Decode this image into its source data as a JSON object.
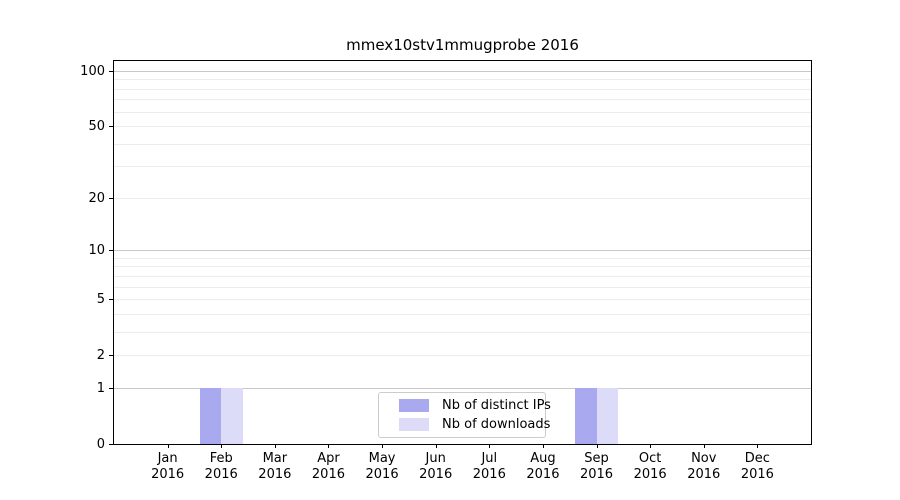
{
  "chart_data": {
    "type": "bar",
    "title": "mmex10stv1mmugprobe 2016",
    "categories": [
      "Jan",
      "Feb",
      "Mar",
      "Apr",
      "May",
      "Jun",
      "Jul",
      "Aug",
      "Sep",
      "Oct",
      "Nov",
      "Dec"
    ],
    "x_year_label": "2016",
    "series": [
      {
        "name": "Nb of distinct IPs",
        "color": "#a9a9f0",
        "values": [
          0,
          1,
          0,
          0,
          0,
          0,
          0,
          0,
          1,
          0,
          0,
          0
        ]
      },
      {
        "name": "Nb of downloads",
        "color": "#dcdcf8",
        "values": [
          0,
          1,
          0,
          0,
          0,
          0,
          0,
          0,
          1,
          0,
          0,
          0
        ]
      }
    ],
    "y_scale": "symlog-like (position proportional to log(1+v))",
    "ylim": [
      0,
      113
    ],
    "y_tick_labels": [
      "100",
      "50",
      "20",
      "10",
      "5",
      "2",
      "1",
      "0"
    ],
    "y_tick_values": [
      100,
      50,
      20,
      10,
      5,
      2,
      1,
      0
    ],
    "y_gridlines_major": [
      1,
      10,
      100
    ],
    "y_gridlines_minor": [
      2,
      3,
      4,
      5,
      6,
      7,
      8,
      9,
      20,
      30,
      40,
      50,
      60,
      70,
      80,
      90
    ],
    "grid": "horizontal gridlines on",
    "legend_position": "inside bottom-center",
    "colors": {
      "background": "#ffffff",
      "spine": "#000000",
      "text": "#000000",
      "grid_major": "#c8c8c8",
      "grid_minor": "#ececec",
      "legend_border": "#cccccc"
    }
  }
}
